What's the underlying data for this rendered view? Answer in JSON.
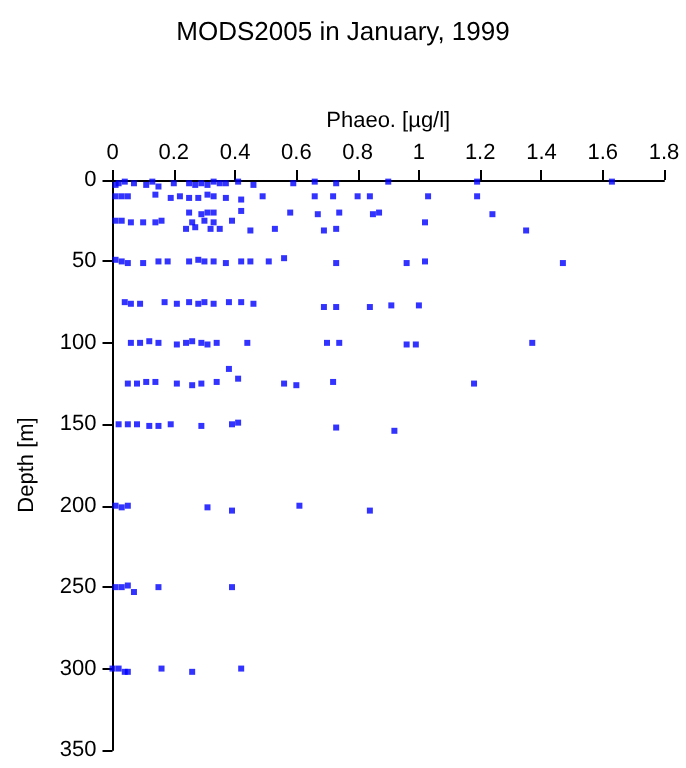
{
  "chart_data": {
    "type": "scatter",
    "title": "MODS2005 in January, 1999",
    "xlabel": "Phaeo. [µg/l]",
    "ylabel": "Depth [m]",
    "xlim": [
      0,
      1.8
    ],
    "xticks": [
      0,
      0.2,
      0.4,
      0.6,
      0.8,
      1,
      1.2,
      1.4,
      1.6,
      1.8
    ],
    "ylim": [
      350,
      0
    ],
    "yticks": [
      0,
      50,
      100,
      150,
      200,
      250,
      300,
      350
    ],
    "grid": false,
    "marker": "square",
    "series": [
      {
        "color": "#0000ff",
        "x": [
          0.01,
          0.02,
          0.04,
          0.07,
          0.11,
          0.13,
          0.15,
          0.2,
          0.25,
          0.27,
          0.29,
          0.31,
          0.33,
          0.35,
          0.37,
          0.41,
          0.46,
          0.59,
          0.66,
          0.73,
          0.9,
          1.19,
          1.63,
          0.01,
          0.03,
          0.05,
          0.14,
          0.19,
          0.22,
          0.25,
          0.28,
          0.31,
          0.33,
          0.37,
          0.42,
          0.49,
          0.66,
          0.72,
          0.8,
          0.84,
          1.03,
          1.19,
          0.25,
          0.29,
          0.31,
          0.33,
          0.42,
          0.58,
          0.67,
          0.74,
          0.85,
          0.87,
          1.24,
          0.01,
          0.03,
          0.06,
          0.1,
          0.14,
          0.16,
          0.26,
          0.3,
          0.33,
          0.39,
          1.02,
          0.24,
          0.27,
          0.32,
          0.35,
          0.45,
          0.53,
          0.69,
          0.73,
          1.35,
          0.01,
          0.03,
          0.05,
          0.1,
          0.15,
          0.18,
          0.25,
          0.28,
          0.3,
          0.33,
          0.37,
          0.42,
          0.45,
          0.51,
          0.56,
          0.73,
          0.96,
          1.02,
          1.47,
          0.04,
          0.06,
          0.09,
          0.17,
          0.21,
          0.25,
          0.28,
          0.3,
          0.33,
          0.38,
          0.42,
          0.46,
          0.69,
          0.73,
          0.84,
          0.91,
          1.0,
          0.06,
          0.09,
          0.12,
          0.15,
          0.21,
          0.24,
          0.26,
          0.29,
          0.31,
          0.34,
          0.44,
          0.7,
          0.74,
          0.96,
          0.99,
          1.37,
          0.05,
          0.08,
          0.11,
          0.14,
          0.21,
          0.26,
          0.29,
          0.34,
          0.41,
          0.56,
          0.6,
          0.72,
          1.18,
          0.38,
          0.02,
          0.05,
          0.08,
          0.12,
          0.15,
          0.19,
          0.29,
          0.39,
          0.41,
          0.73,
          0.92,
          0.01,
          0.03,
          0.05,
          0.31,
          0.39,
          0.61,
          0.84,
          0.01,
          0.03,
          0.05,
          0.07,
          0.15,
          0.39,
          0,
          0.02,
          0.04,
          0.05,
          0.16,
          0.26,
          0.42
        ],
        "values": [
          3,
          2,
          1,
          2,
          3,
          1,
          4,
          2,
          2,
          3,
          2,
          3,
          1,
          2,
          2,
          1,
          3,
          2,
          1,
          2,
          1,
          1,
          1,
          10,
          10,
          10,
          9,
          11,
          10,
          11,
          11,
          9,
          10,
          11,
          12,
          10,
          10,
          10,
          10,
          10,
          10,
          10,
          20,
          21,
          20,
          20,
          19,
          20,
          21,
          20,
          21,
          20,
          21,
          25,
          25,
          26,
          26,
          26,
          25,
          26,
          25,
          26,
          25,
          26,
          30,
          29,
          30,
          30,
          31,
          30,
          31,
          30,
          31,
          49,
          50,
          51,
          51,
          50,
          50,
          50,
          49,
          50,
          50,
          51,
          50,
          50,
          50,
          48,
          51,
          51,
          50,
          51,
          75,
          76,
          76,
          75,
          76,
          75,
          76,
          75,
          76,
          75,
          75,
          76,
          78,
          78,
          78,
          77,
          77,
          100,
          100,
          99,
          100,
          101,
          100,
          99,
          100,
          101,
          100,
          100,
          100,
          100,
          101,
          101,
          100,
          125,
          125,
          124,
          124,
          125,
          126,
          125,
          124,
          122,
          125,
          126,
          124,
          125,
          116,
          150,
          150,
          150,
          151,
          151,
          150,
          151,
          150,
          149,
          152,
          154,
          200,
          201,
          200,
          201,
          203,
          200,
          203,
          250,
          250,
          249,
          253,
          250,
          250,
          300,
          300,
          302,
          302,
          300,
          302,
          300
        ]
      }
    ]
  }
}
